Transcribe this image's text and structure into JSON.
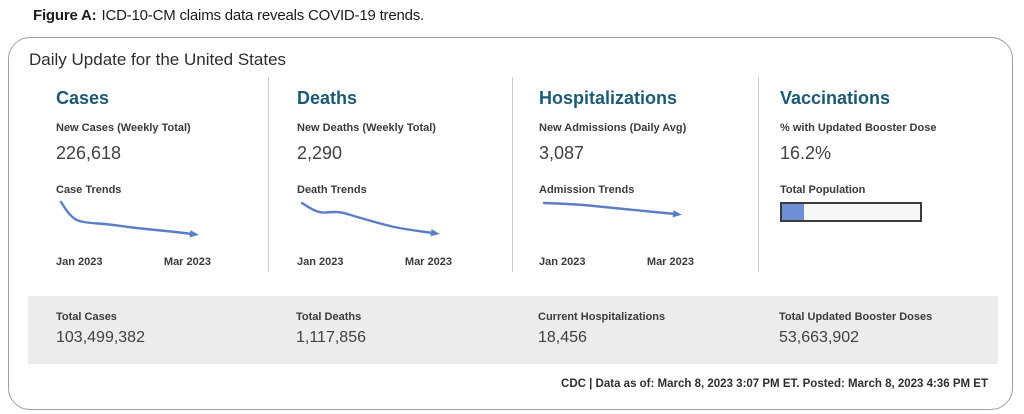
{
  "caption": {
    "prefix": "Figure A:",
    "text": "ICD-10-CM claims data reveals COVID-19 trends."
  },
  "card": {
    "title": "Daily Update for the United States",
    "columns": [
      {
        "heading": "Cases",
        "metric_label": "New Cases (Weekly Total)",
        "metric_value": "226,618",
        "trend_label": "Case Trends",
        "x_start": "Jan 2023",
        "x_end": "Mar 2023"
      },
      {
        "heading": "Deaths",
        "metric_label": "New Deaths (Weekly Total)",
        "metric_value": "2,290",
        "trend_label": "Death Trends",
        "x_start": "Jan 2023",
        "x_end": "Mar 2023"
      },
      {
        "heading": "Hospitalizations",
        "metric_label": "New Admissions (Daily Avg)",
        "metric_value": "3,087",
        "trend_label": "Admission Trends",
        "x_start": "Jan 2023",
        "x_end": "Mar 2023"
      },
      {
        "heading": "Vaccinations",
        "metric_label": "% with Updated Booster Dose",
        "metric_value": "16.2%",
        "bar_label": "Total Population",
        "bar_percent": 16.2
      }
    ],
    "totals": [
      {
        "label": "Total Cases",
        "value": "103,499,382"
      },
      {
        "label": "Total Deaths",
        "value": "1,117,856"
      },
      {
        "label": "Current Hospitalizations",
        "value": "18,456"
      },
      {
        "label": "Total Updated Booster Doses",
        "value": "53,663,902"
      }
    ],
    "footer": "CDC | Data as of: March 8, 2023 3:07 PM ET. Posted: March 8, 2023 4:36 PM ET"
  },
  "colors": {
    "heading_accent": "#1c5a74",
    "trend_line": "#5b7fc4",
    "progress_fill": "#6e8fd4",
    "progress_border": "#3b3b3b",
    "totals_background": "#ececec",
    "card_border": "#9e9e9e",
    "text_primary": "#333333"
  },
  "chart_data": [
    {
      "type": "line",
      "panel": "Cases",
      "title": "Case Trends",
      "x_domain": [
        "Jan 2023",
        "Mar 2023"
      ],
      "y_axis": "unlabeled sparkline",
      "trend": "steep initial decline then gradual decrease",
      "metric": {
        "label": "New Cases (Weekly Total)",
        "value": 226618
      },
      "shape_points": [
        [
          5,
          4
        ],
        [
          10,
          12
        ],
        [
          16,
          19
        ],
        [
          22,
          23
        ],
        [
          34,
          25
        ],
        [
          50,
          26
        ],
        [
          65,
          28
        ],
        [
          80,
          30
        ],
        [
          100,
          32
        ],
        [
          120,
          34
        ],
        [
          136,
          36
        ]
      ]
    },
    {
      "type": "line",
      "panel": "Deaths",
      "title": "Death Trends",
      "x_domain": [
        "Jan 2023",
        "Mar 2023"
      ],
      "y_axis": "unlabeled sparkline",
      "trend": "dip, slight plateau, then steady decline",
      "metric": {
        "label": "New Deaths (Weekly Total)",
        "value": 2290
      },
      "shape_points": [
        [
          5,
          5
        ],
        [
          14,
          11
        ],
        [
          24,
          15
        ],
        [
          34,
          14
        ],
        [
          44,
          14
        ],
        [
          60,
          19
        ],
        [
          78,
          24
        ],
        [
          96,
          29
        ],
        [
          114,
          32
        ],
        [
          136,
          35
        ]
      ]
    },
    {
      "type": "line",
      "panel": "Hospitalizations",
      "title": "Admission Trends",
      "x_domain": [
        "Jan 2023",
        "Mar 2023"
      ],
      "y_axis": "unlabeled sparkline",
      "trend": "nearly flat, slight decline",
      "metric": {
        "label": "New Admissions (Daily Avg)",
        "value": 3087
      },
      "shape_points": [
        [
          5,
          5
        ],
        [
          35,
          6
        ],
        [
          65,
          9
        ],
        [
          95,
          12
        ],
        [
          136,
          16
        ]
      ]
    },
    {
      "type": "bar",
      "panel": "Vaccinations",
      "title": "Total Population",
      "metric": {
        "label": "% with Updated Booster Dose",
        "value": 16.2
      },
      "percent_filled": 16.2
    },
    {
      "type": "table",
      "title": "Cumulative totals",
      "rows": [
        [
          "Total Cases",
          103499382
        ],
        [
          "Total Deaths",
          1117856
        ],
        [
          "Current Hospitalizations",
          18456
        ],
        [
          "Total Updated Booster Doses",
          53663902
        ]
      ]
    }
  ]
}
